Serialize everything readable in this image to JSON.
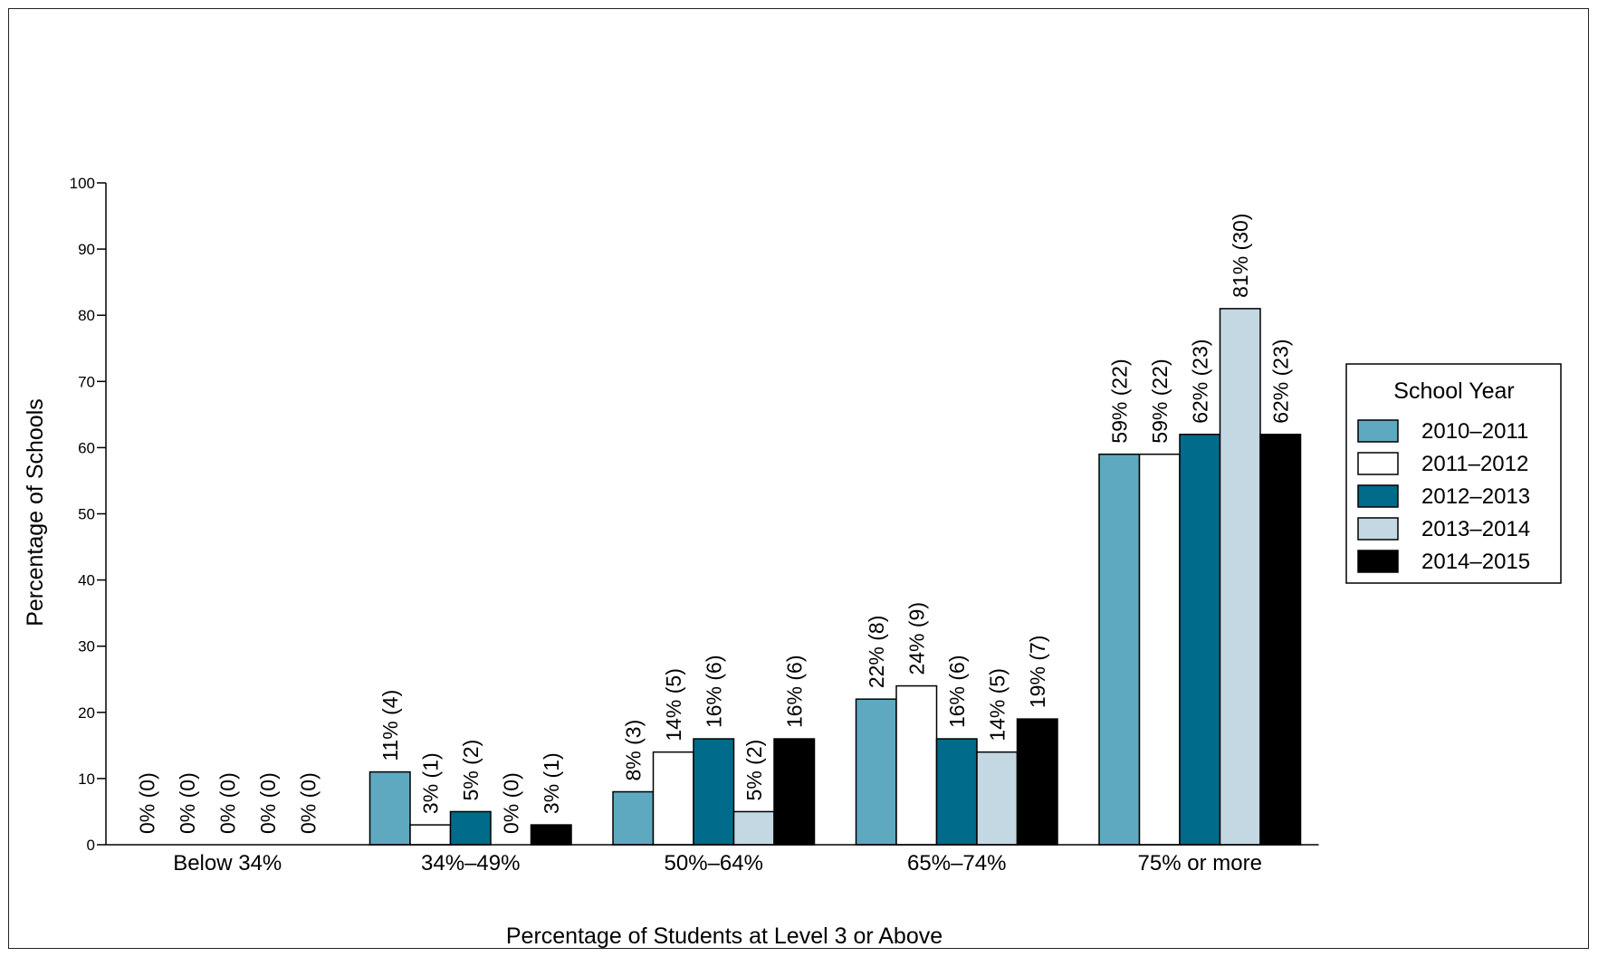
{
  "chart_data": {
    "type": "bar",
    "title": "",
    "xlabel": "Percentage of Students at Level 3 or Above",
    "ylabel": "Percentage of Schools",
    "ylim": [
      0,
      100
    ],
    "yticks": [
      0,
      10,
      20,
      30,
      40,
      50,
      60,
      70,
      80,
      90,
      100
    ],
    "grid": false,
    "legend_title": "School Year",
    "legend_position": "right",
    "categories": [
      "Below 34%",
      "34%–49%",
      "50%–64%",
      "65%–74%",
      "75% or more"
    ],
    "series": [
      {
        "name": "2010–2011",
        "color": "#5fa9c0",
        "values": [
          0,
          11,
          8,
          22,
          59
        ],
        "labels": [
          "0% (0)",
          "11% (4)",
          "8% (3)",
          "22% (8)",
          "59% (22)"
        ]
      },
      {
        "name": "2011–2012",
        "color": "#ffffff",
        "values": [
          0,
          3,
          14,
          24,
          59
        ],
        "labels": [
          "0% (0)",
          "3% (1)",
          "14% (5)",
          "24% (9)",
          "59% (22)"
        ]
      },
      {
        "name": "2012–2013",
        "color": "#006b8a",
        "values": [
          0,
          5,
          16,
          16,
          62
        ],
        "labels": [
          "0% (0)",
          "5% (2)",
          "16% (6)",
          "16% (6)",
          "62% (23)"
        ]
      },
      {
        "name": "2013–2014",
        "color": "#c4d8e3",
        "values": [
          0,
          0,
          5,
          14,
          81
        ],
        "labels": [
          "0% (0)",
          "0% (0)",
          "5% (2)",
          "14% (5)",
          "81% (30)"
        ]
      },
      {
        "name": "2014–2015",
        "color": "#000000",
        "values": [
          0,
          3,
          16,
          19,
          62
        ],
        "labels": [
          "0% (0)",
          "3% (1)",
          "16% (6)",
          "19% (7)",
          "62% (23)"
        ]
      }
    ]
  }
}
